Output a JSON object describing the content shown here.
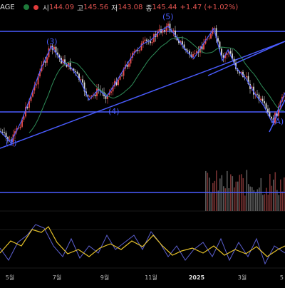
{
  "header": {
    "ticker": "AGE",
    "open_label": "시",
    "open_value": "144.09",
    "high_label": "고",
    "high_value": "145.56",
    "low_label": "저",
    "low_value": "143.08",
    "close_label": "종",
    "close_value": "145.44",
    "change": "+1.47 (+1.02%)"
  },
  "colors": {
    "background": "#000000",
    "trendline": "#4a5cff",
    "up_candle": "#ef5350",
    "down_candle": "#d9d9d9",
    "moving_average": "#2e8b57",
    "oscillator_main": "#e6c229",
    "oscillator_signal": "#5b5fd0",
    "volume": "#8a3a3a"
  },
  "chart_data": {
    "type": "line",
    "title": "",
    "x_tick_labels": [
      "5월",
      "7월",
      "9월",
      "11월",
      "2025",
      "3월",
      "5"
    ],
    "wave_labels": [
      "(2)",
      "(3)",
      "(4)",
      "(5)",
      "(A)"
    ],
    "series": [
      {
        "name": "",
        "points": [
          [
            0,
            184
          ],
          [
            15,
            200
          ],
          [
            30,
            170
          ],
          [
            45,
            130
          ],
          [
            58,
            95
          ],
          [
            72,
            65
          ],
          [
            86,
            85
          ],
          [
            100,
            95
          ],
          [
            112,
            112
          ],
          [
            125,
            140
          ],
          [
            138,
            126
          ],
          [
            150,
            135
          ],
          [
            163,
            115
          ],
          [
            175,
            95
          ],
          [
            188,
            75
          ],
          [
            200,
            62
          ],
          [
            212,
            56
          ],
          [
            224,
            44
          ],
          [
            236,
            37
          ],
          [
            248,
            52
          ],
          [
            260,
            70
          ],
          [
            272,
            82
          ],
          [
            285,
            62
          ],
          [
            300,
            40
          ],
          [
            312,
            85
          ],
          [
            320,
            70
          ],
          [
            332,
            96
          ],
          [
            345,
            110
          ],
          [
            358,
            132
          ],
          [
            370,
            148
          ],
          [
            382,
            172
          ],
          [
            392,
            150
          ],
          [
            400,
            130
          ]
        ]
      }
    ],
    "oscillator_main": [
      [
        0,
        355
      ],
      [
        15,
        338
      ],
      [
        30,
        345
      ],
      [
        45,
        322
      ],
      [
        58,
        326
      ],
      [
        68,
        318
      ],
      [
        80,
        340
      ],
      [
        95,
        356
      ],
      [
        110,
        350
      ],
      [
        125,
        360
      ],
      [
        140,
        348
      ],
      [
        155,
        342
      ],
      [
        170,
        350
      ],
      [
        185,
        338
      ],
      [
        200,
        346
      ],
      [
        215,
        330
      ],
      [
        228,
        345
      ],
      [
        242,
        358
      ],
      [
        255,
        352
      ],
      [
        270,
        348
      ],
      [
        285,
        355
      ],
      [
        300,
        345
      ],
      [
        315,
        358
      ],
      [
        330,
        350
      ],
      [
        345,
        356
      ],
      [
        360,
        346
      ],
      [
        375,
        360
      ],
      [
        390,
        350
      ],
      [
        400,
        345
      ]
    ],
    "oscillator_signal": [
      [
        0,
        348
      ],
      [
        12,
        365
      ],
      [
        25,
        340
      ],
      [
        38,
        330
      ],
      [
        50,
        315
      ],
      [
        62,
        320
      ],
      [
        75,
        345
      ],
      [
        88,
        360
      ],
      [
        100,
        335
      ],
      [
        112,
        362
      ],
      [
        125,
        345
      ],
      [
        138,
        355
      ],
      [
        150,
        330
      ],
      [
        162,
        350
      ],
      [
        175,
        340
      ],
      [
        188,
        330
      ],
      [
        200,
        350
      ],
      [
        212,
        325
      ],
      [
        224,
        340
      ],
      [
        236,
        360
      ],
      [
        248,
        345
      ],
      [
        260,
        365
      ],
      [
        272,
        350
      ],
      [
        285,
        340
      ],
      [
        298,
        360
      ],
      [
        310,
        335
      ],
      [
        322,
        365
      ],
      [
        335,
        340
      ],
      [
        348,
        360
      ],
      [
        360,
        335
      ],
      [
        372,
        370
      ],
      [
        385,
        345
      ],
      [
        400,
        355
      ]
    ]
  }
}
